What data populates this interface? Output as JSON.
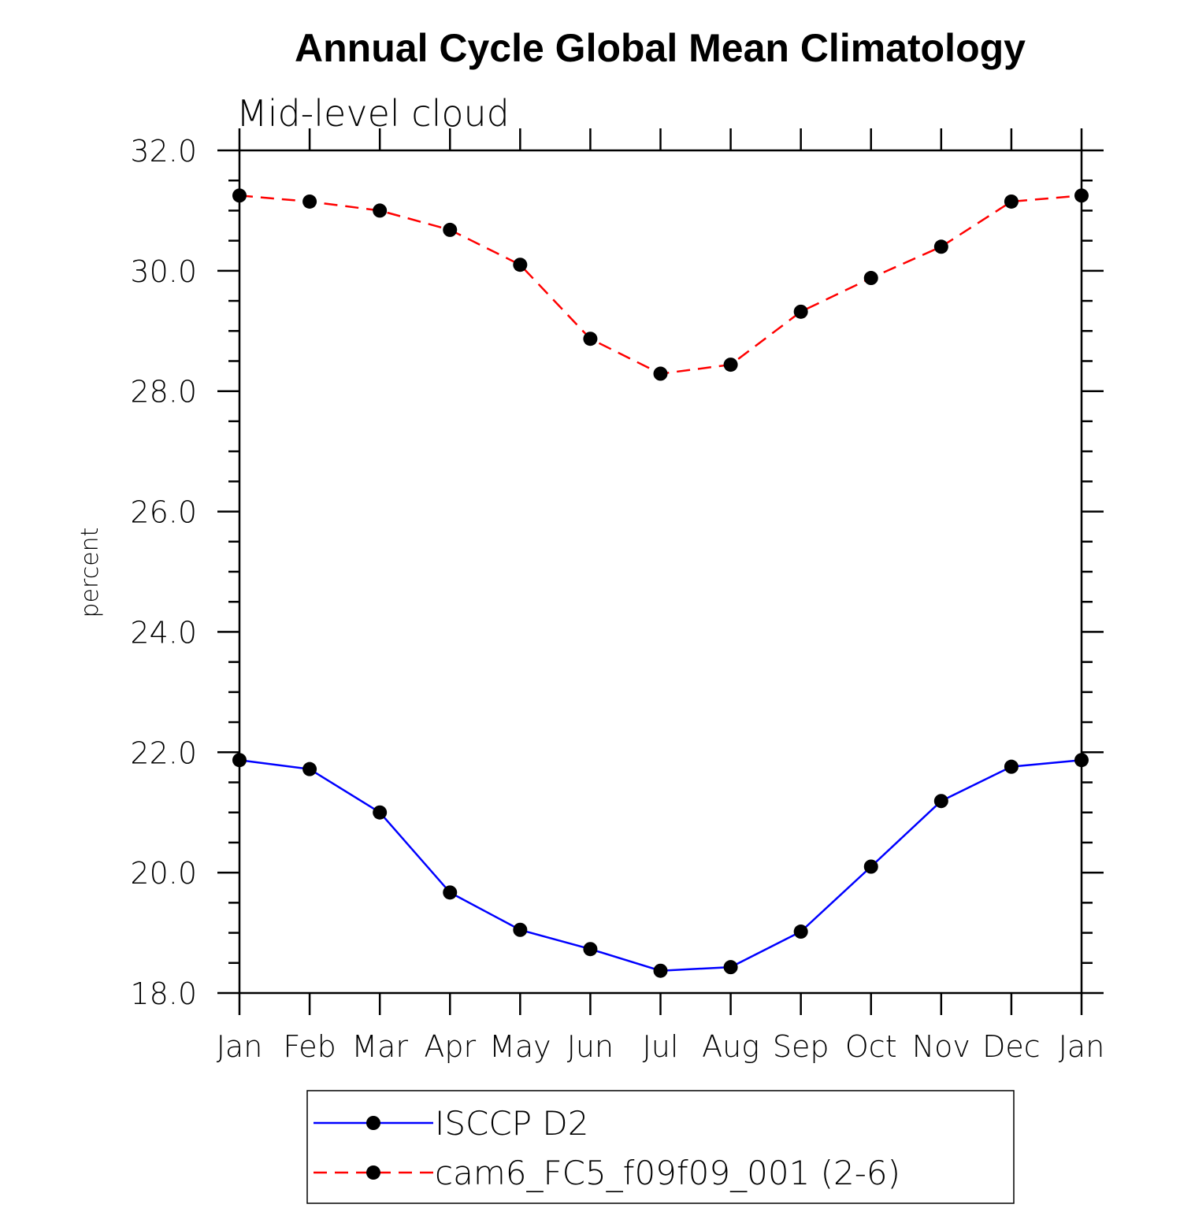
{
  "chart_data": {
    "type": "line",
    "title": "Annual Cycle Global Mean Climatology",
    "subtitle": "Mid-level cloud",
    "xlabel": "",
    "ylabel": "percent",
    "categories": [
      "Jan",
      "Feb",
      "Mar",
      "Apr",
      "May",
      "Jun",
      "Jul",
      "Aug",
      "Sep",
      "Oct",
      "Nov",
      "Dec",
      "Jan"
    ],
    "ylim": [
      18.0,
      32.0
    ],
    "yticks": [
      "18.0",
      "20.0",
      "22.0",
      "24.0",
      "26.0",
      "28.0",
      "30.0",
      "32.0"
    ],
    "grid": false,
    "legend_position": "bottom-center",
    "series": [
      {
        "name": "ISCCP D2",
        "color": "#0000ff",
        "dash": "solid",
        "marker": "filled-circle",
        "values": [
          21.87,
          21.72,
          21.0,
          19.67,
          19.05,
          18.73,
          18.37,
          18.43,
          19.02,
          20.1,
          21.19,
          21.76,
          21.87
        ]
      },
      {
        "name": "cam6_FC5_f09f09_001 (2-6)",
        "color": "#ff0000",
        "dash": "dashed",
        "marker": "filled-circle",
        "values": [
          31.25,
          31.15,
          31.0,
          30.68,
          30.1,
          28.87,
          28.29,
          28.44,
          29.32,
          29.88,
          30.4,
          31.15,
          31.25
        ]
      }
    ]
  }
}
